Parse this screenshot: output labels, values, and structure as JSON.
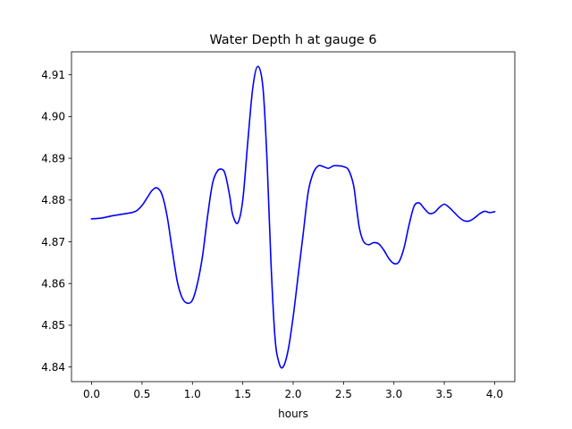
{
  "chart_data": {
    "type": "line",
    "title": "Water Depth h at gauge 6",
    "xlabel": "hours",
    "ylabel": "",
    "xlim": [
      -0.2,
      4.2
    ],
    "ylim": [
      4.8365,
      4.9155
    ],
    "x_ticks": [
      0.0,
      0.5,
      1.0,
      1.5,
      2.0,
      2.5,
      3.0,
      3.5,
      4.0
    ],
    "x_tick_labels": [
      "0.0",
      "0.5",
      "1.0",
      "1.5",
      "2.0",
      "2.5",
      "3.0",
      "3.5",
      "4.0"
    ],
    "y_ticks": [
      4.84,
      4.85,
      4.86,
      4.87,
      4.88,
      4.89,
      4.9,
      4.91
    ],
    "y_tick_labels": [
      "4.84",
      "4.85",
      "4.86",
      "4.87",
      "4.88",
      "4.89",
      "4.90",
      "4.91"
    ],
    "grid": false,
    "series": [
      {
        "color": "#0000ff",
        "x": [
          0.0,
          0.1,
          0.2,
          0.3,
          0.4,
          0.45,
          0.5,
          0.55,
          0.6,
          0.65,
          0.7,
          0.75,
          0.8,
          0.85,
          0.9,
          0.95,
          1.0,
          1.05,
          1.1,
          1.15,
          1.2,
          1.25,
          1.3,
          1.33,
          1.37,
          1.4,
          1.45,
          1.5,
          1.55,
          1.6,
          1.65,
          1.7,
          1.74,
          1.78,
          1.82,
          1.86,
          1.9,
          1.95,
          2.0,
          2.05,
          2.1,
          2.15,
          2.2,
          2.25,
          2.3,
          2.35,
          2.4,
          2.45,
          2.5,
          2.55,
          2.6,
          2.63,
          2.66,
          2.7,
          2.75,
          2.8,
          2.85,
          2.9,
          2.95,
          3.0,
          3.05,
          3.1,
          3.15,
          3.2,
          3.25,
          3.3,
          3.35,
          3.4,
          3.45,
          3.5,
          3.55,
          3.6,
          3.65,
          3.7,
          3.75,
          3.8,
          3.85,
          3.9,
          3.95,
          4.0
        ],
        "y": [
          4.8755,
          4.8757,
          4.8762,
          4.8766,
          4.877,
          4.8775,
          4.8787,
          4.8805,
          4.8823,
          4.8829,
          4.8812,
          4.876,
          4.868,
          4.8605,
          4.8565,
          4.8553,
          4.856,
          4.86,
          4.8665,
          4.876,
          4.884,
          4.887,
          4.8873,
          4.8858,
          4.881,
          4.8765,
          4.8745,
          4.88,
          4.894,
          4.907,
          4.912,
          4.907,
          4.89,
          4.865,
          4.847,
          4.841,
          4.84,
          4.844,
          4.852,
          4.862,
          4.872,
          4.882,
          4.8865,
          4.8882,
          4.888,
          4.8876,
          4.8882,
          4.8882,
          4.888,
          4.8872,
          4.8835,
          4.878,
          4.873,
          4.87,
          4.8693,
          4.8698,
          4.8695,
          4.868,
          4.866,
          4.8648,
          4.8652,
          4.8685,
          4.874,
          4.8785,
          4.8793,
          4.878,
          4.8768,
          4.877,
          4.8782,
          4.879,
          4.8782,
          4.877,
          4.8758,
          4.875,
          4.875,
          4.8757,
          4.8767,
          4.8773,
          4.877,
          4.8772
        ]
      }
    ]
  }
}
